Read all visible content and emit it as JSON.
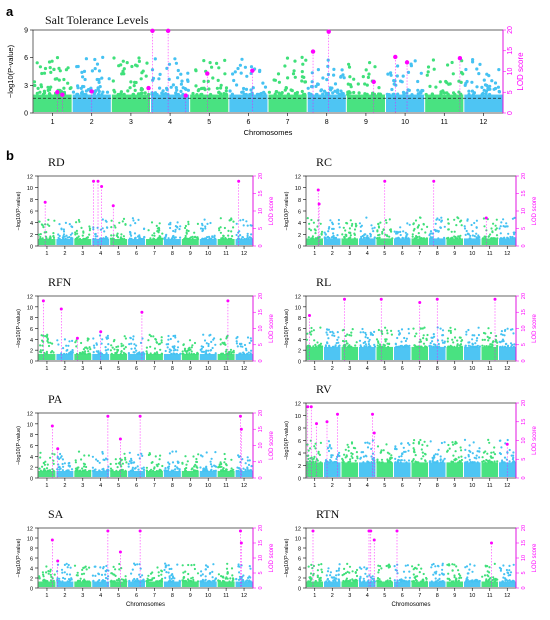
{
  "colors": {
    "green": "#3fe07a",
    "blue": "#45c2f2",
    "magenta": "#ff00ff",
    "threshold": "#222222"
  },
  "chart_data": [
    {
      "panel": "a",
      "type": "scatter",
      "subtype": "manhattan",
      "title": "Salt Tolerance Levels",
      "xlabel": "Chromosomes",
      "ylabel": "−log10(P-value)",
      "y2label": "LOD score",
      "categories": [
        "1",
        "2",
        "3",
        "4",
        "5",
        "6",
        "7",
        "8",
        "9",
        "10",
        "11",
        "12"
      ],
      "ylim": [
        0,
        9
      ],
      "yticks": [
        0,
        3,
        6,
        9
      ],
      "y2lim": [
        0,
        20
      ],
      "y2ticks": [
        0,
        5,
        10,
        15,
        20
      ],
      "threshold": 1.6,
      "base_level": 2.0,
      "point_counts": [
        55,
        48,
        45,
        50,
        38,
        40,
        40,
        48,
        35,
        38,
        35,
        40
      ],
      "qtl": [
        {
          "chr": 1,
          "pos": 0.62,
          "lod": 5.0
        },
        {
          "chr": 1,
          "pos": 0.75,
          "lod": 4.4
        },
        {
          "chr": 2,
          "pos": 0.5,
          "lod": 5.2
        },
        {
          "chr": 3,
          "pos": 0.95,
          "lod": 6.0
        },
        {
          "chr": 4,
          "pos": 0.05,
          "lod": 19.8
        },
        {
          "chr": 4,
          "pos": 0.45,
          "lod": 19.8
        },
        {
          "chr": 4,
          "pos": 0.9,
          "lod": 4.2
        },
        {
          "chr": 5,
          "pos": 0.45,
          "lod": 9.5
        },
        {
          "chr": 6,
          "pos": 0.6,
          "lod": 10.2
        },
        {
          "chr": 8,
          "pos": 0.15,
          "lod": 14.8
        },
        {
          "chr": 8,
          "pos": 0.55,
          "lod": 19.6
        },
        {
          "chr": 9,
          "pos": 0.7,
          "lod": 7.5
        },
        {
          "chr": 10,
          "pos": 0.25,
          "lod": 13.5
        },
        {
          "chr": 10,
          "pos": 0.55,
          "lod": 12.2
        },
        {
          "chr": 11,
          "pos": 0.9,
          "lod": 13.2
        }
      ]
    },
    {
      "panel": "RD",
      "type": "scatter",
      "subtype": "manhattan",
      "ylabel": "−log10(P-value)",
      "y2label": "LOD score",
      "categories": [
        "1",
        "2",
        "3",
        "4",
        "5",
        "6",
        "7",
        "8",
        "9",
        "10",
        "11",
        "12"
      ],
      "ylim": [
        0,
        12
      ],
      "yticks": [
        0,
        2,
        4,
        6,
        8,
        10,
        12
      ],
      "y2lim": [
        0,
        20
      ],
      "y2ticks": [
        0,
        5,
        10,
        15,
        20
      ],
      "base_level": 1.2,
      "qtl": [
        {
          "chr": 1,
          "pos": 0.4,
          "lod": 12.5
        },
        {
          "chr": 4,
          "pos": 0.1,
          "lod": 18.5
        },
        {
          "chr": 4,
          "pos": 0.35,
          "lod": 18.5
        },
        {
          "chr": 4,
          "pos": 0.55,
          "lod": 17.0
        },
        {
          "chr": 5,
          "pos": 0.2,
          "lod": 11.5
        },
        {
          "chr": 12,
          "pos": 0.2,
          "lod": 18.5
        }
      ]
    },
    {
      "panel": "RC",
      "type": "scatter",
      "subtype": "manhattan",
      "ylabel": "−log10(P-value)",
      "y2label": "LOD score",
      "categories": [
        "1",
        "2",
        "3",
        "4",
        "5",
        "6",
        "7",
        "8",
        "9",
        "10",
        "11",
        "12"
      ],
      "ylim": [
        0,
        12
      ],
      "yticks": [
        0,
        2,
        4,
        6,
        8,
        10,
        12
      ],
      "y2lim": [
        0,
        20
      ],
      "y2ticks": [
        0,
        5,
        10,
        15,
        20
      ],
      "base_level": 1.3,
      "qtl": [
        {
          "chr": 1,
          "pos": 0.7,
          "lod": 16.0
        },
        {
          "chr": 1,
          "pos": 0.75,
          "lod": 12.0
        },
        {
          "chr": 5,
          "pos": 0.5,
          "lod": 18.5
        },
        {
          "chr": 8,
          "pos": 0.3,
          "lod": 18.5
        },
        {
          "chr": 11,
          "pos": 0.3,
          "lod": 8.0
        }
      ]
    },
    {
      "panel": "RFN",
      "type": "scatter",
      "subtype": "manhattan",
      "ylabel": "−log10(P-value)",
      "y2label": "LOD score",
      "categories": [
        "1",
        "2",
        "3",
        "4",
        "5",
        "6",
        "7",
        "8",
        "9",
        "10",
        "11",
        "12"
      ],
      "ylim": [
        0,
        12
      ],
      "yticks": [
        0,
        2,
        4,
        6,
        8,
        10,
        12
      ],
      "y2lim": [
        0,
        20
      ],
      "y2ticks": [
        0,
        5,
        10,
        15,
        20
      ],
      "base_level": 1.3,
      "qtl": [
        {
          "chr": 1,
          "pos": 0.3,
          "lod": 18.5
        },
        {
          "chr": 2,
          "pos": 0.3,
          "lod": 16.0
        },
        {
          "chr": 3,
          "pos": 0.2,
          "lod": 7.0
        },
        {
          "chr": 4,
          "pos": 0.5,
          "lod": 9.0
        },
        {
          "chr": 6,
          "pos": 0.8,
          "lod": 15.0
        },
        {
          "chr": 11,
          "pos": 0.6,
          "lod": 18.5
        }
      ]
    },
    {
      "panel": "RL",
      "type": "scatter",
      "subtype": "manhattan",
      "ylabel": "−log10(P-value)",
      "y2label": "LOD score",
      "categories": [
        "1",
        "2",
        "3",
        "4",
        "5",
        "6",
        "7",
        "8",
        "9",
        "10",
        "11",
        "12"
      ],
      "ylim": [
        0,
        12
      ],
      "yticks": [
        0,
        2,
        4,
        6,
        8,
        10,
        12
      ],
      "y2lim": [
        0,
        20
      ],
      "y2ticks": [
        0,
        5,
        10,
        15,
        20
      ],
      "base_level": 2.6,
      "qtl": [
        {
          "chr": 1,
          "pos": 0.2,
          "lod": 14.0
        },
        {
          "chr": 3,
          "pos": 0.2,
          "lod": 19.0
        },
        {
          "chr": 5,
          "pos": 0.3,
          "lod": 19.0
        },
        {
          "chr": 7,
          "pos": 0.5,
          "lod": 18.0
        },
        {
          "chr": 8,
          "pos": 0.5,
          "lod": 19.0
        },
        {
          "chr": 11,
          "pos": 0.8,
          "lod": 19.0
        }
      ]
    },
    {
      "panel": "PA",
      "type": "scatter",
      "subtype": "manhattan",
      "ylabel": "−log10(P-value)",
      "y2label": "LOD score",
      "categories": [
        "1",
        "2",
        "3",
        "4",
        "5",
        "6",
        "7",
        "8",
        "9",
        "10",
        "11",
        "12"
      ],
      "ylim": [
        0,
        12
      ],
      "yticks": [
        0,
        2,
        4,
        6,
        8,
        10,
        12
      ],
      "y2lim": [
        0,
        20
      ],
      "y2ticks": [
        0,
        5,
        10,
        15,
        20
      ],
      "base_level": 1.3,
      "qtl": [
        {
          "chr": 1,
          "pos": 0.8,
          "lod": 16.0
        },
        {
          "chr": 2,
          "pos": 0.1,
          "lod": 9.0
        },
        {
          "chr": 4,
          "pos": 0.9,
          "lod": 19.0
        },
        {
          "chr": 5,
          "pos": 0.6,
          "lod": 12.0
        },
        {
          "chr": 6,
          "pos": 0.7,
          "lod": 19.0
        },
        {
          "chr": 12,
          "pos": 0.3,
          "lod": 19.0
        },
        {
          "chr": 12,
          "pos": 0.35,
          "lod": 15.0
        }
      ]
    },
    {
      "panel": "RV",
      "type": "scatter",
      "subtype": "manhattan",
      "ylabel": "−log10(P-value)",
      "y2label": "LOD score",
      "categories": [
        "1",
        "2",
        "3",
        "4",
        "5",
        "6",
        "7",
        "8",
        "9",
        "10",
        "11",
        "12"
      ],
      "ylim": [
        0,
        12
      ],
      "yticks": [
        0,
        2,
        4,
        6,
        8,
        10,
        12
      ],
      "y2lim": [
        0,
        20
      ],
      "y2ticks": [
        0,
        5,
        10,
        15,
        20
      ],
      "base_level": 2.5,
      "qtl": [
        {
          "chr": 1,
          "pos": 0.1,
          "lod": 19.0
        },
        {
          "chr": 1,
          "pos": 0.3,
          "lod": 19.0
        },
        {
          "chr": 1,
          "pos": 0.6,
          "lod": 14.5
        },
        {
          "chr": 2,
          "pos": 0.2,
          "lod": 15.0
        },
        {
          "chr": 2,
          "pos": 0.8,
          "lod": 17.0
        },
        {
          "chr": 4,
          "pos": 0.8,
          "lod": 17.0
        },
        {
          "chr": 4,
          "pos": 0.9,
          "lod": 12.0
        },
        {
          "chr": 12,
          "pos": 0.5,
          "lod": 9.0
        }
      ]
    },
    {
      "panel": "SA",
      "type": "scatter",
      "subtype": "manhattan",
      "ylabel": "−log10(P-value)",
      "y2label": "LOD score",
      "xlabel": "Chromosomes",
      "categories": [
        "1",
        "2",
        "3",
        "4",
        "5",
        "6",
        "7",
        "8",
        "9",
        "10",
        "11",
        "12"
      ],
      "ylim": [
        0,
        12
      ],
      "yticks": [
        0,
        2,
        4,
        6,
        8,
        10,
        12
      ],
      "y2lim": [
        0,
        20
      ],
      "y2ticks": [
        0,
        5,
        10,
        15,
        20
      ],
      "base_level": 1.3,
      "qtl": [
        {
          "chr": 1,
          "pos": 0.8,
          "lod": 16.0
        },
        {
          "chr": 2,
          "pos": 0.1,
          "lod": 9.0
        },
        {
          "chr": 4,
          "pos": 0.9,
          "lod": 19.0
        },
        {
          "chr": 5,
          "pos": 0.6,
          "lod": 12.0
        },
        {
          "chr": 6,
          "pos": 0.7,
          "lod": 19.0
        },
        {
          "chr": 12,
          "pos": 0.3,
          "lod": 19.0
        },
        {
          "chr": 12,
          "pos": 0.35,
          "lod": 15.0
        }
      ]
    },
    {
      "panel": "RTN",
      "type": "scatter",
      "subtype": "manhattan",
      "ylabel": "−log10(P-value)",
      "y2label": "LOD score",
      "xlabel": "Chromosomes",
      "categories": [
        "1",
        "2",
        "3",
        "4",
        "5",
        "6",
        "7",
        "8",
        "9",
        "10",
        "11",
        "12"
      ],
      "ylim": [
        0,
        12
      ],
      "yticks": [
        0,
        2,
        4,
        6,
        8,
        10,
        12
      ],
      "y2lim": [
        0,
        20
      ],
      "y2ticks": [
        0,
        5,
        10,
        15,
        20
      ],
      "base_level": 1.3,
      "qtl": [
        {
          "chr": 1,
          "pos": 0.4,
          "lod": 19.0
        },
        {
          "chr": 4,
          "pos": 0.6,
          "lod": 19.0
        },
        {
          "chr": 4,
          "pos": 0.7,
          "lod": 19.0
        },
        {
          "chr": 4,
          "pos": 0.9,
          "lod": 16.0
        },
        {
          "chr": 6,
          "pos": 0.2,
          "lod": 19.0
        },
        {
          "chr": 11,
          "pos": 0.6,
          "lod": 15.0
        }
      ]
    }
  ],
  "figure": {
    "label_a": "a",
    "label_b": "b"
  }
}
